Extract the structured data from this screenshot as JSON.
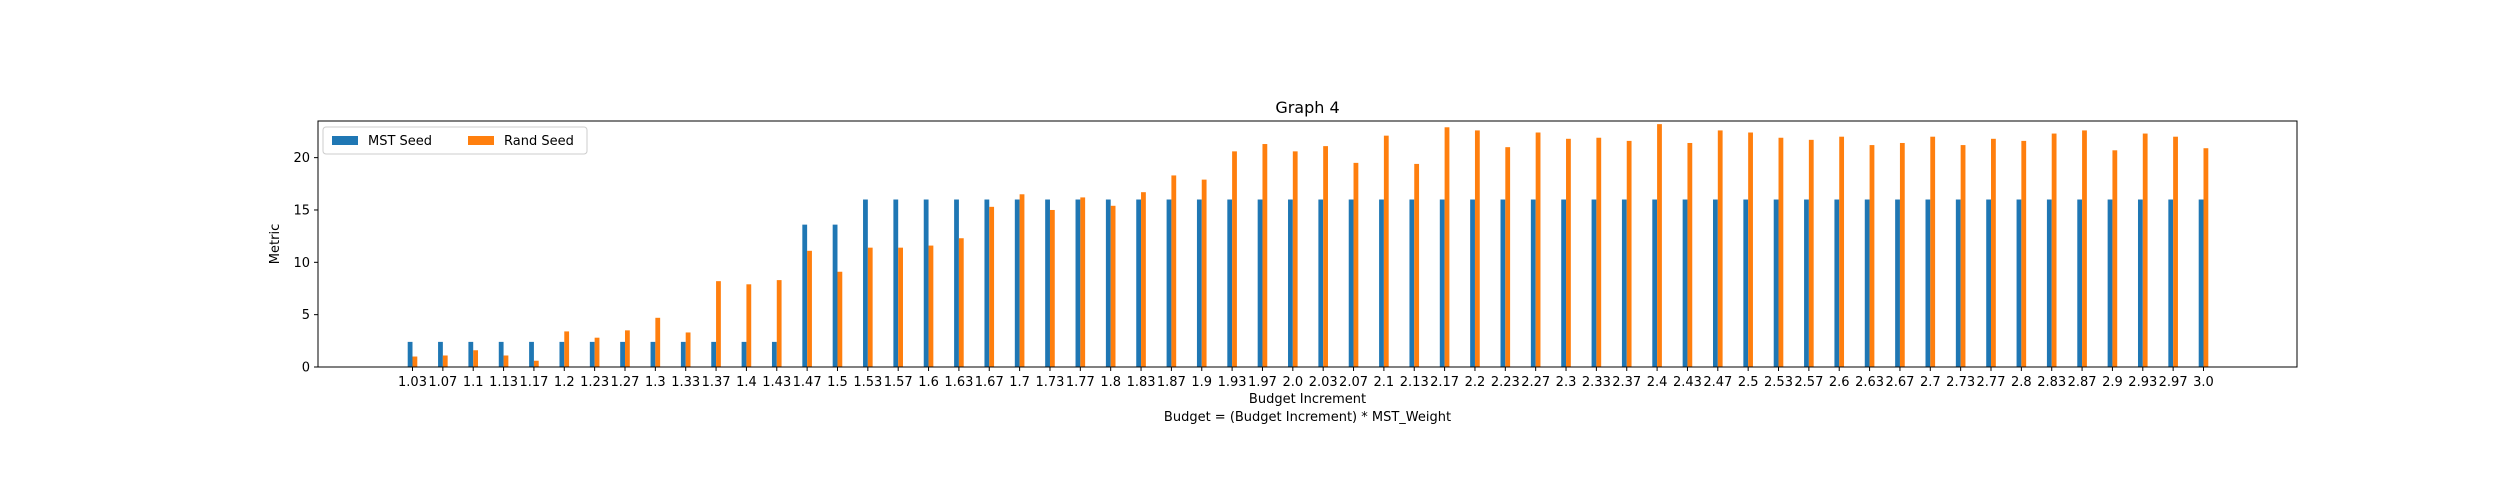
{
  "chart_data": {
    "type": "bar",
    "title": "Graph 4",
    "xlabel": "Budget Increment",
    "xlabel2": "Budget = (Budget Increment) * MST_Weight",
    "ylabel": "Metric",
    "ylim": [
      0,
      23.5
    ],
    "yticks": [
      0,
      5,
      10,
      15,
      20
    ],
    "legend_position": "top-left",
    "grid": false,
    "categories": [
      "1.03",
      "1.07",
      "1.1",
      "1.13",
      "1.17",
      "1.2",
      "1.23",
      "1.27",
      "1.3",
      "1.33",
      "1.37",
      "1.4",
      "1.43",
      "1.47",
      "1.5",
      "1.53",
      "1.57",
      "1.6",
      "1.63",
      "1.67",
      "1.7",
      "1.73",
      "1.77",
      "1.8",
      "1.83",
      "1.87",
      "1.9",
      "1.93",
      "1.97",
      "2.0",
      "2.03",
      "2.07",
      "2.1",
      "2.13",
      "2.17",
      "2.2",
      "2.23",
      "2.27",
      "2.3",
      "2.33",
      "2.37",
      "2.4",
      "2.43",
      "2.47",
      "2.5",
      "2.53",
      "2.57",
      "2.6",
      "2.63",
      "2.67",
      "2.7",
      "2.73",
      "2.77",
      "2.8",
      "2.83",
      "2.87",
      "2.9",
      "2.93",
      "2.97",
      "3.0"
    ],
    "series": [
      {
        "name": "MST Seed",
        "color": "#1f77b4",
        "values": [
          2.4,
          2.4,
          2.4,
          2.4,
          2.4,
          2.4,
          2.4,
          2.4,
          2.4,
          2.4,
          2.4,
          2.4,
          2.4,
          13.6,
          13.6,
          16.0,
          16.0,
          16.0,
          16.0,
          16.0,
          16.0,
          16.0,
          16.0,
          16.0,
          16.0,
          16.0,
          16.0,
          16.0,
          16.0,
          16.0,
          16.0,
          16.0,
          16.0,
          16.0,
          16.0,
          16.0,
          16.0,
          16.0,
          16.0,
          16.0,
          16.0,
          16.0,
          16.0,
          16.0,
          16.0,
          16.0,
          16.0,
          16.0,
          16.0,
          16.0,
          16.0,
          16.0,
          16.0,
          16.0,
          16.0,
          16.0,
          16.0,
          16.0,
          16.0,
          16.0
        ]
      },
      {
        "name": "Rand Seed",
        "color": "#ff7f0e",
        "values": [
          1.0,
          1.1,
          1.6,
          1.1,
          0.6,
          3.4,
          2.8,
          3.5,
          4.7,
          3.3,
          8.2,
          7.9,
          8.3,
          11.1,
          9.1,
          11.4,
          11.4,
          11.6,
          12.3,
          15.3,
          16.5,
          15.0,
          16.2,
          15.4,
          16.7,
          18.3,
          17.9,
          20.6,
          21.3,
          20.6,
          21.1,
          19.5,
          22.1,
          19.4,
          22.9,
          22.6,
          21.0,
          22.4,
          21.8,
          21.9,
          21.6,
          23.2,
          21.4,
          22.6,
          22.4,
          21.9,
          21.7,
          22.0,
          21.2,
          21.4,
          22.0,
          21.2,
          21.8,
          21.6,
          22.3,
          22.6,
          20.7,
          22.3,
          22.0,
          20.9
        ]
      }
    ]
  }
}
